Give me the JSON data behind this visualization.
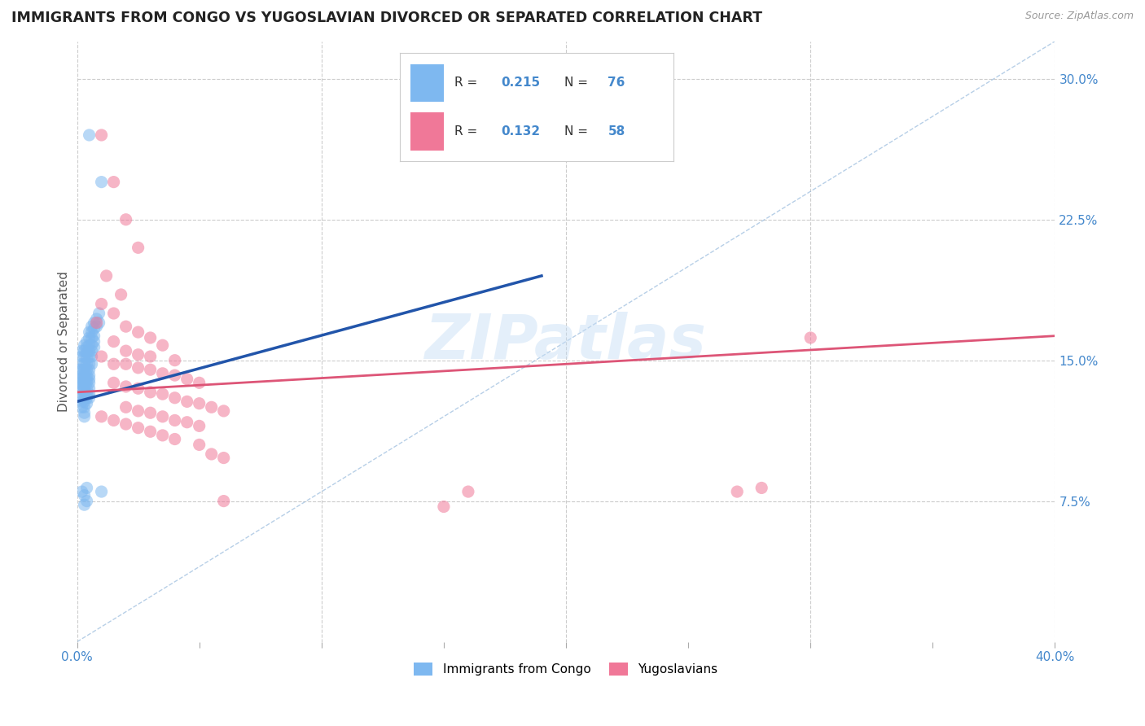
{
  "title": "IMMIGRANTS FROM CONGO VS YUGOSLAVIAN DIVORCED OR SEPARATED CORRELATION CHART",
  "source": "Source: ZipAtlas.com",
  "ylabel": "Divorced or Separated",
  "ytick_labels": [
    "7.5%",
    "15.0%",
    "22.5%",
    "30.0%"
  ],
  "ytick_values": [
    0.075,
    0.15,
    0.225,
    0.3
  ],
  "xlim": [
    0.0,
    0.4
  ],
  "ylim": [
    0.0,
    0.32
  ],
  "watermark": "ZIPatlas",
  "bg_color": "#ffffff",
  "grid_color": "#cccccc",
  "title_color": "#222222",
  "scatter_alpha": 0.55,
  "scatter_size": 120,
  "congo_color": "#7eb8f0",
  "yugo_color": "#f07898",
  "congo_line_color": "#2255aa",
  "yugo_line_color": "#dd5577",
  "diag_line_color": "#99bbdd",
  "right_axis_color": "#4488cc",
  "congo_line_x": [
    0.0,
    0.19
  ],
  "congo_line_y": [
    0.128,
    0.195
  ],
  "yugo_line_x": [
    0.0,
    0.4
  ],
  "yugo_line_y": [
    0.133,
    0.163
  ],
  "diag_line_x": [
    0.0,
    0.4
  ],
  "diag_line_y": [
    0.0,
    0.32
  ],
  "congo_scatter": [
    [
      0.001,
      0.145
    ],
    [
      0.001,
      0.14
    ],
    [
      0.001,
      0.138
    ],
    [
      0.001,
      0.135
    ],
    [
      0.002,
      0.155
    ],
    [
      0.002,
      0.152
    ],
    [
      0.002,
      0.148
    ],
    [
      0.002,
      0.145
    ],
    [
      0.002,
      0.142
    ],
    [
      0.002,
      0.14
    ],
    [
      0.002,
      0.137
    ],
    [
      0.002,
      0.134
    ],
    [
      0.002,
      0.13
    ],
    [
      0.002,
      0.128
    ],
    [
      0.002,
      0.125
    ],
    [
      0.003,
      0.158
    ],
    [
      0.003,
      0.155
    ],
    [
      0.003,
      0.152
    ],
    [
      0.003,
      0.148
    ],
    [
      0.003,
      0.145
    ],
    [
      0.003,
      0.142
    ],
    [
      0.003,
      0.14
    ],
    [
      0.003,
      0.138
    ],
    [
      0.003,
      0.135
    ],
    [
      0.003,
      0.132
    ],
    [
      0.003,
      0.13
    ],
    [
      0.003,
      0.128
    ],
    [
      0.003,
      0.125
    ],
    [
      0.003,
      0.122
    ],
    [
      0.003,
      0.12
    ],
    [
      0.004,
      0.16
    ],
    [
      0.004,
      0.157
    ],
    [
      0.004,
      0.154
    ],
    [
      0.004,
      0.151
    ],
    [
      0.004,
      0.148
    ],
    [
      0.004,
      0.145
    ],
    [
      0.004,
      0.142
    ],
    [
      0.004,
      0.14
    ],
    [
      0.004,
      0.138
    ],
    [
      0.004,
      0.135
    ],
    [
      0.004,
      0.132
    ],
    [
      0.004,
      0.13
    ],
    [
      0.004,
      0.127
    ],
    [
      0.005,
      0.165
    ],
    [
      0.005,
      0.162
    ],
    [
      0.005,
      0.158
    ],
    [
      0.005,
      0.155
    ],
    [
      0.005,
      0.152
    ],
    [
      0.005,
      0.148
    ],
    [
      0.005,
      0.145
    ],
    [
      0.005,
      0.142
    ],
    [
      0.005,
      0.14
    ],
    [
      0.005,
      0.138
    ],
    [
      0.005,
      0.135
    ],
    [
      0.005,
      0.132
    ],
    [
      0.005,
      0.13
    ],
    [
      0.006,
      0.168
    ],
    [
      0.006,
      0.165
    ],
    [
      0.006,
      0.162
    ],
    [
      0.006,
      0.158
    ],
    [
      0.006,
      0.155
    ],
    [
      0.006,
      0.152
    ],
    [
      0.006,
      0.148
    ],
    [
      0.007,
      0.17
    ],
    [
      0.007,
      0.167
    ],
    [
      0.007,
      0.163
    ],
    [
      0.007,
      0.16
    ],
    [
      0.007,
      0.157
    ],
    [
      0.008,
      0.172
    ],
    [
      0.008,
      0.168
    ],
    [
      0.009,
      0.175
    ],
    [
      0.009,
      0.17
    ],
    [
      0.01,
      0.245
    ],
    [
      0.005,
      0.27
    ],
    [
      0.002,
      0.08
    ],
    [
      0.003,
      0.078
    ],
    [
      0.004,
      0.075
    ],
    [
      0.003,
      0.073
    ],
    [
      0.004,
      0.082
    ],
    [
      0.01,
      0.08
    ]
  ],
  "yugo_scatter": [
    [
      0.01,
      0.27
    ],
    [
      0.015,
      0.245
    ],
    [
      0.02,
      0.225
    ],
    [
      0.025,
      0.21
    ],
    [
      0.012,
      0.195
    ],
    [
      0.018,
      0.185
    ],
    [
      0.01,
      0.18
    ],
    [
      0.015,
      0.175
    ],
    [
      0.008,
      0.17
    ],
    [
      0.02,
      0.168
    ],
    [
      0.025,
      0.165
    ],
    [
      0.03,
      0.162
    ],
    [
      0.015,
      0.16
    ],
    [
      0.035,
      0.158
    ],
    [
      0.02,
      0.155
    ],
    [
      0.025,
      0.153
    ],
    [
      0.03,
      0.152
    ],
    [
      0.01,
      0.152
    ],
    [
      0.04,
      0.15
    ],
    [
      0.015,
      0.148
    ],
    [
      0.02,
      0.148
    ],
    [
      0.025,
      0.146
    ],
    [
      0.03,
      0.145
    ],
    [
      0.035,
      0.143
    ],
    [
      0.04,
      0.142
    ],
    [
      0.045,
      0.14
    ],
    [
      0.05,
      0.138
    ],
    [
      0.015,
      0.138
    ],
    [
      0.02,
      0.136
    ],
    [
      0.025,
      0.135
    ],
    [
      0.03,
      0.133
    ],
    [
      0.035,
      0.132
    ],
    [
      0.04,
      0.13
    ],
    [
      0.045,
      0.128
    ],
    [
      0.05,
      0.127
    ],
    [
      0.055,
      0.125
    ],
    [
      0.06,
      0.123
    ],
    [
      0.02,
      0.125
    ],
    [
      0.025,
      0.123
    ],
    [
      0.03,
      0.122
    ],
    [
      0.035,
      0.12
    ],
    [
      0.04,
      0.118
    ],
    [
      0.045,
      0.117
    ],
    [
      0.05,
      0.115
    ],
    [
      0.01,
      0.12
    ],
    [
      0.015,
      0.118
    ],
    [
      0.02,
      0.116
    ],
    [
      0.025,
      0.114
    ],
    [
      0.03,
      0.112
    ],
    [
      0.035,
      0.11
    ],
    [
      0.04,
      0.108
    ],
    [
      0.05,
      0.105
    ],
    [
      0.055,
      0.1
    ],
    [
      0.06,
      0.098
    ],
    [
      0.3,
      0.162
    ],
    [
      0.27,
      0.08
    ],
    [
      0.15,
      0.072
    ],
    [
      0.06,
      0.075
    ],
    [
      0.16,
      0.08
    ],
    [
      0.28,
      0.082
    ]
  ]
}
